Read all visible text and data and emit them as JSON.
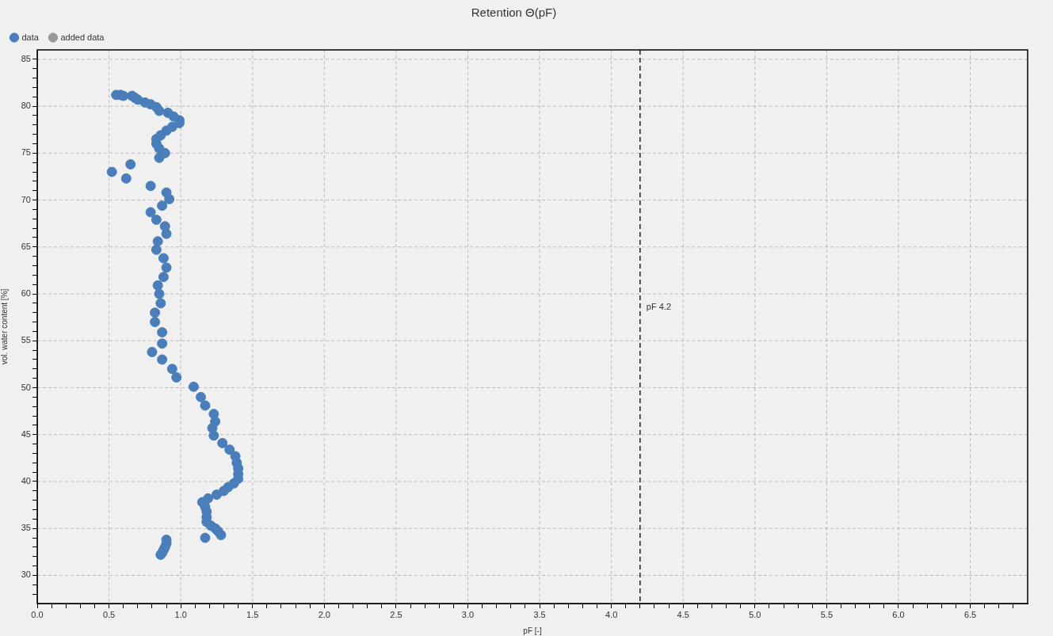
{
  "chart_data": {
    "type": "scatter",
    "title": "Retention Θ(pF)",
    "xlabel": "pF [-]",
    "ylabel": "vol. water content [%]",
    "xlim": [
      0,
      6.9
    ],
    "ylim": [
      27,
      86
    ],
    "xticks": [
      {
        "value": 0,
        "label": "0.0"
      },
      {
        "value": 0.1,
        "label": null
      },
      {
        "value": 0.2,
        "label": null
      },
      {
        "value": 0.3,
        "label": null
      },
      {
        "value": 0.4,
        "label": null
      },
      0.5,
      {
        "value": 0.6,
        "label": null
      },
      {
        "value": 0.7,
        "label": null
      },
      {
        "value": 0.8,
        "label": null
      },
      {
        "value": 0.9,
        "label": null
      },
      {
        "value": 1,
        "label": "1.0"
      },
      {
        "value": 1.1,
        "label": null
      },
      {
        "value": 1.2,
        "label": null
      },
      {
        "value": 1.3,
        "label": null
      },
      {
        "value": 1.4,
        "label": null
      },
      1.5,
      {
        "value": 1.6,
        "label": null
      },
      {
        "value": 1.7,
        "label": null
      },
      {
        "value": 1.8,
        "label": null
      },
      {
        "value": 1.9,
        "label": null
      },
      {
        "value": 2,
        "label": "2.0"
      },
      {
        "value": 2.1,
        "label": null
      },
      {
        "value": 2.2,
        "label": null
      },
      {
        "value": 2.3,
        "label": null
      },
      {
        "value": 2.4,
        "label": null
      },
      2.5,
      {
        "value": 2.6,
        "label": null
      },
      {
        "value": 2.7,
        "label": null
      },
      {
        "value": 2.8,
        "label": null
      },
      {
        "value": 2.9,
        "label": null
      },
      {
        "value": 3,
        "label": "3.0"
      },
      {
        "value": 3.1,
        "label": null
      },
      {
        "value": 3.2,
        "label": null
      },
      {
        "value": 3.3,
        "label": null
      },
      {
        "value": 3.4,
        "label": null
      },
      3.5,
      {
        "value": 3.6,
        "label": null
      },
      {
        "value": 3.7,
        "label": null
      },
      {
        "value": 3.8,
        "label": null
      },
      {
        "value": 3.9,
        "label": null
      },
      {
        "value": 4,
        "label": "4.0"
      },
      {
        "value": 4.1,
        "label": null
      },
      {
        "value": 4.2,
        "label": null
      },
      {
        "value": 4.3,
        "label": null
      },
      {
        "value": 4.4,
        "label": null
      },
      4.5,
      {
        "value": 4.6,
        "label": null
      },
      {
        "value": 4.7,
        "label": null
      },
      {
        "value": 4.8,
        "label": null
      },
      {
        "value": 4.9,
        "label": null
      },
      {
        "value": 5,
        "label": "5.0"
      },
      {
        "value": 5.1,
        "label": null
      },
      {
        "value": 5.2,
        "label": null
      },
      {
        "value": 5.3,
        "label": null
      },
      {
        "value": 5.4,
        "label": null
      },
      5.5,
      {
        "value": 5.6,
        "label": null
      },
      {
        "value": 5.7,
        "label": null
      },
      {
        "value": 5.8,
        "label": null
      },
      {
        "value": 5.9,
        "label": null
      },
      {
        "value": 6,
        "label": "6.0"
      },
      {
        "value": 6.1,
        "label": null
      },
      {
        "value": 6.2,
        "label": null
      },
      {
        "value": 6.3,
        "label": null
      },
      {
        "value": 6.4,
        "label": null
      },
      6.5,
      {
        "value": 6.6,
        "label": null
      },
      {
        "value": 6.7,
        "label": null
      },
      {
        "value": 6.8,
        "label": null
      }
    ],
    "yticks": [
      {
        "value": 28,
        "label": null
      },
      {
        "value": 29,
        "label": null
      },
      30,
      {
        "value": 31,
        "label": null
      },
      {
        "value": 32,
        "label": null
      },
      {
        "value": 33,
        "label": null
      },
      {
        "value": 34,
        "label": null
      },
      35,
      {
        "value": 36,
        "label": null
      },
      {
        "value": 37,
        "label": null
      },
      {
        "value": 38,
        "label": null
      },
      {
        "value": 39,
        "label": null
      },
      40,
      {
        "value": 41,
        "label": null
      },
      {
        "value": 42,
        "label": null
      },
      {
        "value": 43,
        "label": null
      },
      {
        "value": 44,
        "label": null
      },
      45,
      {
        "value": 46,
        "label": null
      },
      {
        "value": 47,
        "label": null
      },
      {
        "value": 48,
        "label": null
      },
      {
        "value": 49,
        "label": null
      },
      50,
      {
        "value": 51,
        "label": null
      },
      {
        "value": 52,
        "label": null
      },
      {
        "value": 53,
        "label": null
      },
      {
        "value": 54,
        "label": null
      },
      55,
      {
        "value": 56,
        "label": null
      },
      {
        "value": 57,
        "label": null
      },
      {
        "value": 58,
        "label": null
      },
      {
        "value": 59,
        "label": null
      },
      60,
      {
        "value": 61,
        "label": null
      },
      {
        "value": 62,
        "label": null
      },
      {
        "value": 63,
        "label": null
      },
      {
        "value": 64,
        "label": null
      },
      65,
      {
        "value": 66,
        "label": null
      },
      {
        "value": 67,
        "label": null
      },
      {
        "value": 68,
        "label": null
      },
      {
        "value": 69,
        "label": null
      },
      70,
      {
        "value": 71,
        "label": null
      },
      {
        "value": 72,
        "label": null
      },
      {
        "value": 73,
        "label": null
      },
      {
        "value": 74,
        "label": null
      },
      75,
      {
        "value": 76,
        "label": null
      },
      {
        "value": 77,
        "label": null
      },
      {
        "value": 78,
        "label": null
      },
      {
        "value": 79,
        "label": null
      },
      80,
      {
        "value": 81,
        "label": null
      },
      {
        "value": 82,
        "label": null
      },
      {
        "value": 83,
        "label": null
      },
      {
        "value": 84,
        "label": null
      },
      85
    ],
    "grid": true,
    "legend": "top left",
    "marker": "circle",
    "ref_lines": [
      {
        "axis": "x",
        "value": 4.2,
        "label": "pF 4.2",
        "color": "#000000",
        "line_style": "dashed"
      }
    ],
    "series": [
      {
        "name": "data",
        "color": "#4a7ebb",
        "x": [
          0.55,
          0.58,
          0.6,
          0.66,
          0.68,
          0.7,
          0.75,
          0.79,
          0.83,
          0.85,
          0.91,
          0.95,
          0.99,
          0.99,
          0.94,
          0.9,
          0.86,
          0.83,
          0.83,
          0.85,
          0.89,
          0.85,
          0.65,
          0.52,
          0.62,
          0.79,
          0.9,
          0.92,
          0.87,
          0.79,
          0.83,
          0.89,
          0.9,
          0.84,
          0.83,
          0.88,
          0.9,
          0.88,
          0.84,
          0.85,
          0.86,
          0.82,
          0.82,
          0.87,
          0.87,
          0.8,
          0.87,
          0.94,
          0.97,
          1.09,
          1.14,
          1.17,
          1.23,
          1.24,
          1.22,
          1.23,
          1.29,
          1.34,
          1.38,
          1.39,
          1.4,
          1.4,
          1.4,
          1.37,
          1.33,
          1.3,
          1.25,
          1.19,
          1.15,
          1.17,
          1.18,
          1.18,
          1.18,
          1.21,
          1.24,
          1.26,
          1.28,
          1.17,
          0.9,
          0.9,
          0.89,
          0.88,
          0.87,
          0.86
        ],
        "values": [
          81.2,
          81.2,
          81.1,
          81.1,
          80.9,
          80.7,
          80.4,
          80.2,
          79.9,
          79.5,
          79.3,
          78.9,
          78.5,
          78.2,
          77.8,
          77.4,
          76.9,
          76.5,
          76,
          75.5,
          75,
          74.5,
          73.8,
          73,
          72.3,
          71.5,
          70.8,
          70.1,
          69.4,
          68.7,
          67.9,
          67.2,
          66.4,
          65.6,
          64.7,
          63.8,
          62.8,
          61.8,
          60.9,
          60,
          59,
          58,
          57,
          55.9,
          54.7,
          53.8,
          53,
          52,
          51.1,
          50.1,
          49,
          48.1,
          47.2,
          46.4,
          45.7,
          44.9,
          44.1,
          43.4,
          42.7,
          42,
          41.4,
          40.8,
          40.3,
          39.8,
          39.4,
          39,
          38.6,
          38.2,
          37.8,
          37.3,
          36.8,
          36.2,
          35.7,
          35.3,
          35,
          34.7,
          34.3,
          34,
          33.8,
          33.4,
          33,
          32.7,
          32.4,
          32.2
        ]
      },
      {
        "name": "added data",
        "color": "#999999"
      }
    ]
  }
}
